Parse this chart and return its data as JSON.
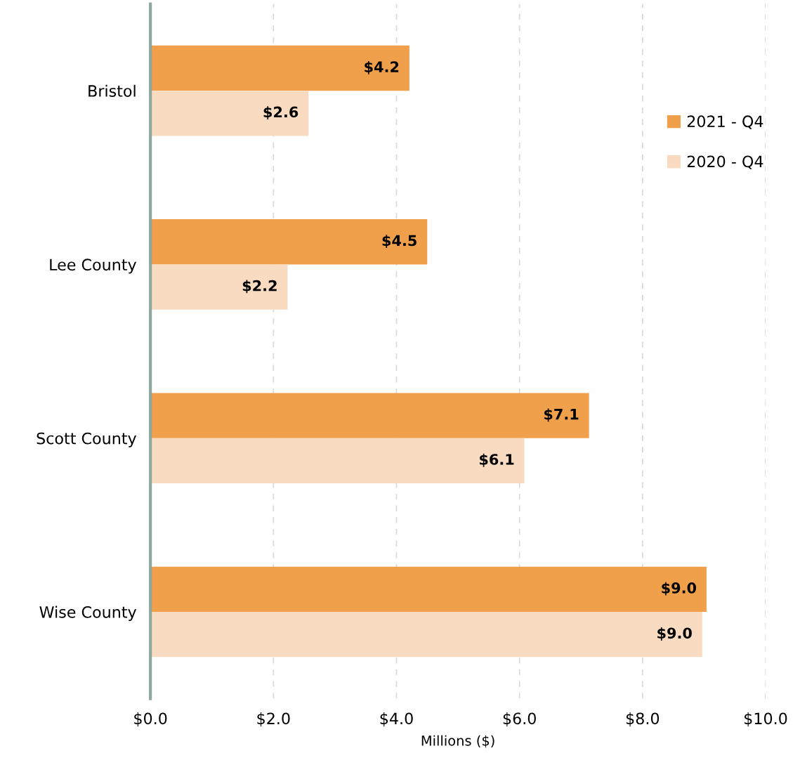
{
  "chart_data": {
    "type": "bar",
    "orientation": "horizontal",
    "xlabel": "Millions ($)",
    "categories": [
      "Bristol",
      "Lee County",
      "Scott County",
      "Wise County"
    ],
    "series": [
      {
        "name": "2021 - Q4",
        "color": "#f0a04b",
        "values": [
          4.21,
          4.5,
          7.13,
          9.04
        ],
        "value_labels": [
          "$4.2",
          "$4.5",
          "$7.1",
          "$9.0"
        ]
      },
      {
        "name": "2020 - Q4",
        "color": "#f8dbc0",
        "values": [
          2.57,
          2.23,
          6.08,
          8.97
        ],
        "value_labels": [
          "$2.6",
          "$2.2",
          "$6.1",
          "$9.0"
        ]
      }
    ],
    "xlim": [
      0,
      10
    ],
    "xticks": [
      {
        "value": 0,
        "label": "$0.0"
      },
      {
        "value": 2,
        "label": "$2.0"
      },
      {
        "value": 4,
        "label": "$4.0"
      },
      {
        "value": 6,
        "label": "$6.0"
      },
      {
        "value": 8,
        "label": "$8.0"
      },
      {
        "value": 10,
        "label": "$10.0"
      }
    ],
    "grid": "x",
    "legend": "top right"
  }
}
